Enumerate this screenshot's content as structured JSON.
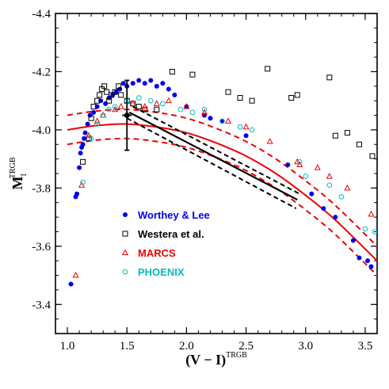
{
  "chart_data": {
    "type": "scatter",
    "xlabel": "(V − I)",
    "xlabel_sup": "TRGB",
    "ylabel": "M",
    "ylabel_sub": "I",
    "ylabel_sup": "TRGB",
    "xlim": [
      0.9,
      3.6
    ],
    "ylim": [
      -3.3,
      -4.4
    ],
    "xticks": [
      "1.0",
      "1.5",
      "2.0",
      "2.5",
      "3.0",
      "3.5"
    ],
    "xtick_values": [
      1.0,
      1.5,
      2.0,
      2.5,
      3.0,
      3.5
    ],
    "yticks": [
      "-3.4",
      "-3.6",
      "-3.8",
      "-4.0",
      "-4.2",
      "-4.4"
    ],
    "ytick_values": [
      -3.4,
      -3.6,
      -3.8,
      -4.0,
      -4.2,
      -4.4
    ],
    "legend_position": "lower-left",
    "series": [
      {
        "name": "Worthey & Lee",
        "marker": "filled-circle",
        "color": "#0000ee",
        "points": [
          [
            1.03,
            -3.47
          ],
          [
            1.07,
            -3.77
          ],
          [
            1.08,
            -3.78
          ],
          [
            1.1,
            -3.87
          ],
          [
            1.11,
            -3.92
          ],
          [
            1.12,
            -3.94
          ],
          [
            1.13,
            -3.95
          ],
          [
            1.14,
            -3.97
          ],
          [
            1.15,
            -3.99
          ],
          [
            1.17,
            -4.02
          ],
          [
            1.19,
            -4.05
          ],
          [
            1.22,
            -4.06
          ],
          [
            1.25,
            -4.08
          ],
          [
            1.28,
            -4.1
          ],
          [
            1.32,
            -4.09
          ],
          [
            1.35,
            -4.11
          ],
          [
            1.38,
            -4.12
          ],
          [
            1.41,
            -4.13
          ],
          [
            1.44,
            -4.14
          ],
          [
            1.47,
            -4.16
          ],
          [
            1.5,
            -4.15
          ],
          [
            1.55,
            -4.16
          ],
          [
            1.6,
            -4.17
          ],
          [
            1.65,
            -4.16
          ],
          [
            1.7,
            -4.17
          ],
          [
            1.75,
            -4.15
          ],
          [
            1.8,
            -4.16
          ],
          [
            1.85,
            -4.14
          ],
          [
            1.9,
            -4.12
          ],
          [
            2.0,
            -4.08
          ],
          [
            2.15,
            -4.05
          ],
          [
            2.2,
            -4.04
          ],
          [
            2.3,
            -4.03
          ],
          [
            2.5,
            -3.98
          ],
          [
            2.85,
            -3.88
          ],
          [
            3.05,
            -3.78
          ],
          [
            3.15,
            -3.73
          ],
          [
            3.25,
            -3.7
          ],
          [
            3.4,
            -3.62
          ],
          [
            3.45,
            -3.56
          ],
          [
            3.52,
            -3.55
          ],
          [
            3.55,
            -3.53
          ]
        ]
      },
      {
        "name": "Westera et al.",
        "marker": "open-square",
        "color": "#000000",
        "points": [
          [
            1.13,
            -3.89
          ],
          [
            1.18,
            -3.97
          ],
          [
            1.2,
            -4.04
          ],
          [
            1.22,
            -4.08
          ],
          [
            1.25,
            -4.1
          ],
          [
            1.27,
            -4.12
          ],
          [
            1.29,
            -4.14
          ],
          [
            1.31,
            -4.15
          ],
          [
            1.33,
            -4.13
          ],
          [
            1.35,
            -4.1
          ],
          [
            1.37,
            -4.12
          ],
          [
            1.4,
            -4.13
          ],
          [
            1.43,
            -4.15
          ],
          [
            1.45,
            -4.12
          ],
          [
            1.5,
            -4.1
          ],
          [
            1.55,
            -4.09
          ],
          [
            1.6,
            -4.08
          ],
          [
            1.65,
            -4.07
          ],
          [
            1.75,
            -4.07
          ],
          [
            1.88,
            -4.2
          ],
          [
            2.05,
            -4.19
          ],
          [
            2.35,
            -4.13
          ],
          [
            2.45,
            -4.11
          ],
          [
            2.55,
            -4.1
          ],
          [
            2.68,
            -4.21
          ],
          [
            2.88,
            -4.11
          ],
          [
            2.93,
            -4.12
          ],
          [
            3.2,
            -4.18
          ],
          [
            3.25,
            -3.98
          ],
          [
            3.35,
            -3.99
          ],
          [
            3.45,
            -3.95
          ],
          [
            3.56,
            -3.91
          ]
        ]
      },
      {
        "name": "MARCS",
        "marker": "open-triangle",
        "color": "#ee0000",
        "points": [
          [
            1.07,
            -3.5
          ],
          [
            1.12,
            -3.81
          ],
          [
            1.18,
            -3.98
          ],
          [
            1.25,
            -4.03
          ],
          [
            1.3,
            -4.05
          ],
          [
            1.4,
            -4.07
          ],
          [
            1.45,
            -4.08
          ],
          [
            1.55,
            -4.09
          ],
          [
            1.65,
            -4.08
          ],
          [
            1.75,
            -4.09
          ],
          [
            1.85,
            -4.1
          ],
          [
            2.0,
            -4.08
          ],
          [
            2.15,
            -4.06
          ],
          [
            2.35,
            -4.03
          ],
          [
            2.5,
            -4.01
          ],
          [
            2.7,
            -3.96
          ],
          [
            2.93,
            -3.89
          ],
          [
            2.95,
            -3.88
          ],
          [
            3.1,
            -3.87
          ],
          [
            3.2,
            -3.84
          ],
          [
            3.35,
            -3.8
          ],
          [
            3.55,
            -3.71
          ]
        ]
      },
      {
        "name": "PHOENIX",
        "marker": "open-circle",
        "color": "#00bbbb",
        "points": [
          [
            1.13,
            -3.82
          ],
          [
            1.2,
            -3.97
          ],
          [
            1.25,
            -4.02
          ],
          [
            1.3,
            -4.05
          ],
          [
            1.35,
            -4.07
          ],
          [
            1.4,
            -4.08
          ],
          [
            1.5,
            -4.1
          ],
          [
            1.6,
            -4.11
          ],
          [
            1.7,
            -4.1
          ],
          [
            1.8,
            -4.09
          ],
          [
            1.95,
            -4.07
          ],
          [
            2.05,
            -4.06
          ],
          [
            2.15,
            -4.07
          ],
          [
            2.3,
            -4.03
          ],
          [
            2.45,
            -4.01
          ],
          [
            2.55,
            -4.0
          ],
          [
            2.95,
            -3.89
          ],
          [
            3.0,
            -3.84
          ],
          [
            3.2,
            -3.81
          ],
          [
            3.3,
            -3.77
          ],
          [
            3.5,
            -3.66
          ],
          [
            3.58,
            -3.65
          ]
        ]
      }
    ],
    "red_fit_x": [
      1.0,
      1.25,
      1.5,
      1.75,
      2.0,
      2.25,
      2.5,
      2.75,
      3.0,
      3.25,
      3.6
    ],
    "red_fit": [
      -4.0,
      -4.015,
      -4.02,
      -4.01,
      -3.99,
      -3.955,
      -3.91,
      -3.85,
      -3.775,
      -3.69,
      -3.55
    ],
    "red_fit_upper": [
      -4.05,
      -4.065,
      -4.07,
      -4.06,
      -4.04,
      -4.005,
      -3.96,
      -3.9,
      -3.825,
      -3.74,
      -3.6
    ],
    "red_fit_lower": [
      -3.95,
      -3.965,
      -3.97,
      -3.96,
      -3.94,
      -3.905,
      -3.86,
      -3.8,
      -3.725,
      -3.64,
      -3.5
    ],
    "black_fit": [
      [
        1.52,
        -4.06
      ],
      [
        2.93,
        -3.76
      ]
    ],
    "black_fit_upper": [
      [
        1.55,
        -4.08
      ],
      [
        2.95,
        -3.78
      ]
    ],
    "black_fit_lower": [
      [
        1.5,
        -4.04
      ],
      [
        2.92,
        -3.73
      ]
    ],
    "errorbar_point": {
      "x": 1.5,
      "y": -4.05,
      "yerr": 0.12,
      "xerr": 0.04
    }
  }
}
